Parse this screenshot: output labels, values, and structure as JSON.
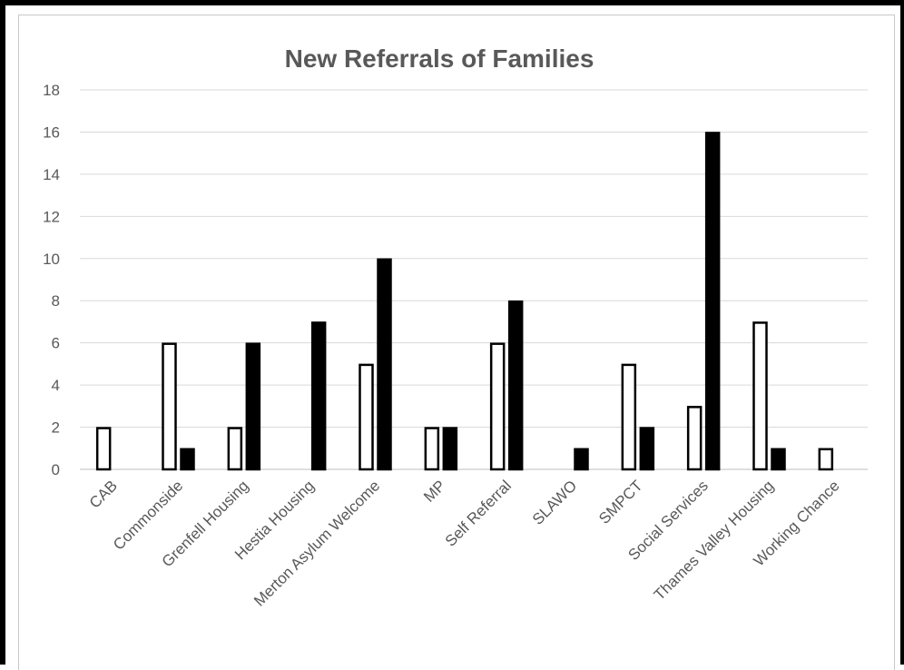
{
  "chart_data": {
    "type": "bar",
    "title": "New Referrals of Families",
    "xlabel": "",
    "ylabel": "",
    "ylim": [
      0,
      18
    ],
    "yticks": [
      0,
      2,
      4,
      6,
      8,
      10,
      12,
      14,
      16,
      18
    ],
    "grid": true,
    "legend": "none",
    "categories": [
      "CAB",
      "Commonside",
      "Grenfell Housing",
      "Hestia Housing",
      "Merton Asylum Welcome",
      "MP",
      "Self Referral",
      "SLAWO",
      "SMPCT",
      "Social Services",
      "Thames Valley Housing",
      "Working Chance"
    ],
    "series": [
      {
        "color": "#ffffff",
        "stroke": "#000000",
        "values": [
          2,
          6,
          2,
          0,
          5,
          2,
          6,
          0,
          5,
          3,
          7,
          1
        ]
      },
      {
        "color": "#000000",
        "stroke": "#000000",
        "values": [
          0,
          1,
          6,
          7,
          10,
          2,
          8,
          1,
          2,
          16,
          1,
          0
        ]
      }
    ]
  }
}
